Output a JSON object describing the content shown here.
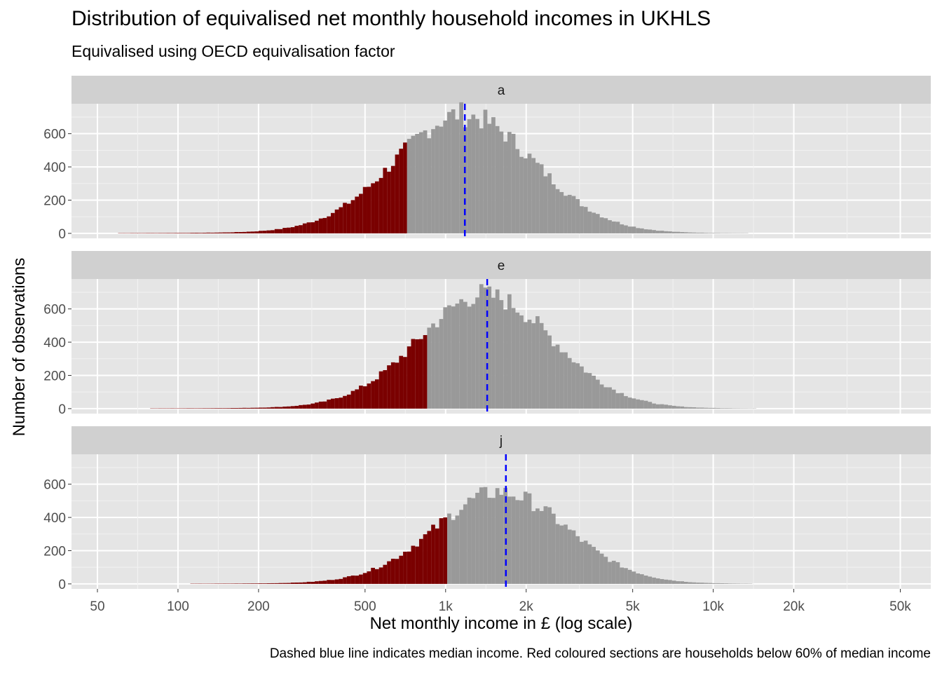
{
  "chart_data": {
    "type": "bar",
    "title": "Distribution of equivalised net monthly household incomes in UKHLS",
    "subtitle": "Equivalised using OECD equivalisation factor",
    "xlabel": "Net monthly income in £ (log scale)",
    "ylabel": "Number of observations",
    "caption": "Dashed blue line indicates median income. Red coloured sections are households below 60% of median income",
    "x_scale": "log10",
    "x_ticks": [
      50,
      100,
      200,
      500,
      1000,
      2000,
      5000,
      10000,
      20000,
      50000
    ],
    "x_tick_labels": [
      "50",
      "100",
      "200",
      "500",
      "1k",
      "2k",
      "5k",
      "10k",
      "20k",
      "50k"
    ],
    "xlim": [
      40,
      65000
    ],
    "y_ticks": [
      0,
      200,
      400,
      600
    ],
    "ylim": [
      -30,
      780
    ],
    "grid": true,
    "colors": {
      "below_threshold": "#7a0000",
      "above_threshold": "#999999",
      "median_line": "#0000ff",
      "panel_bg": "#e5e5e5",
      "strip_bg": "#d0d0d0"
    },
    "panels": [
      {
        "label": "a",
        "median": 1180,
        "threshold": 708,
        "peak": 700,
        "peak_x": 1180,
        "sigma": 0.6
      },
      {
        "label": "e",
        "median": 1430,
        "threshold": 858,
        "peak": 670,
        "peak_x": 1420,
        "sigma": 0.58
      },
      {
        "label": "j",
        "median": 1680,
        "threshold": 1008,
        "peak": 540,
        "peak_x": 1620,
        "sigma": 0.57
      }
    ]
  }
}
